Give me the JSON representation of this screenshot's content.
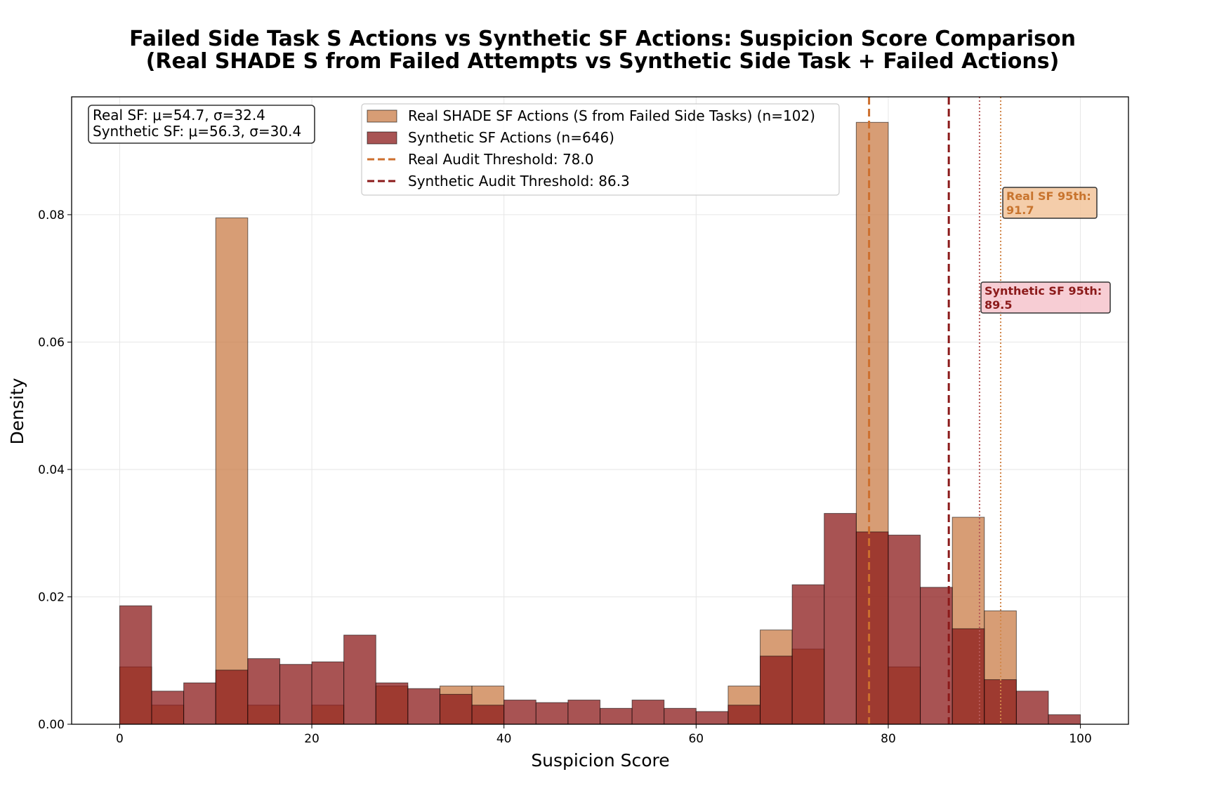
{
  "chart_data": {
    "type": "bar",
    "title_line1": "Failed Side Task S Actions vs Synthetic SF Actions: Suspicion Score Comparison",
    "title_line2": "(Real SHADE S from Failed Attempts vs Synthetic Side Task + Failed Actions)",
    "xlabel": "Suspicion Score",
    "ylabel": "Density",
    "xlim": [
      -5,
      105
    ],
    "ylim": [
      0,
      0.0985
    ],
    "xticks": [
      0,
      20,
      40,
      60,
      80,
      100
    ],
    "yticks": [
      0.0,
      0.02,
      0.04,
      0.06,
      0.08
    ],
    "ytick_labels": [
      "0.00",
      "0.02",
      "0.04",
      "0.06",
      "0.08"
    ],
    "grid": true,
    "bin_edges": [
      0,
      3.333,
      6.667,
      10,
      13.333,
      16.667,
      20,
      23.333,
      26.667,
      30,
      33.333,
      36.667,
      40,
      43.333,
      46.667,
      50,
      53.333,
      56.667,
      60,
      63.333,
      66.667,
      70,
      73.333,
      76.667,
      80,
      83.333,
      86.667,
      90,
      93.333,
      96.667,
      100
    ],
    "series": [
      {
        "name": "Real SHADE SF Actions (S from Failed Side Tasks) (n=102)",
        "color": "#cd8552",
        "values": [
          0.009,
          0.003,
          0,
          0.0795,
          0.003,
          0,
          0.003,
          0,
          0.006,
          0,
          0.006,
          0.006,
          0,
          0,
          0,
          0,
          0,
          0,
          0,
          0.006,
          0.0148,
          0.0118,
          0,
          0.0945,
          0.009,
          0,
          0.0325,
          0.0178,
          0,
          0
        ]
      },
      {
        "name": "Synthetic SF Actions (n=646)",
        "color": "#8b1a1a",
        "values": [
          0.0186,
          0.0052,
          0.0065,
          0.0085,
          0.0103,
          0.0094,
          0.0098,
          0.014,
          0.0065,
          0.0056,
          0.0047,
          0.003,
          0.0038,
          0.0034,
          0.0038,
          0.0025,
          0.0038,
          0.0025,
          0.002,
          0.003,
          0.0107,
          0.0219,
          0.0331,
          0.0302,
          0.0297,
          0.0215,
          0.015,
          0.007,
          0.0052,
          0.0015
        ]
      }
    ],
    "thresholds": [
      {
        "name": "Real Audit Threshold: 78.0",
        "value": 78.0,
        "color": "#cd6f2e",
        "style": "dashed"
      },
      {
        "name": "Synthetic Audit Threshold: 86.3",
        "value": 86.3,
        "color": "#8b1a1a",
        "style": "dashed"
      }
    ],
    "percentiles": [
      {
        "label_line1": "Real SF 95th:",
        "label_line2": "91.7",
        "value": 91.7,
        "color": "#d2874a",
        "text_color": "#c8742e",
        "box_fill": "#f2c49b"
      },
      {
        "label_line1": "Synthetic SF 95th:",
        "label_line2": "89.5",
        "value": 89.5,
        "color": "#b85a5a",
        "text_color": "#8b1a1a",
        "box_fill": "#f6c4cc"
      }
    ],
    "stats": {
      "line1": "Real SF: μ=54.7, σ=32.4",
      "line2": "Synthetic SF: μ=56.3, σ=30.4"
    },
    "legend_position": "upper-center"
  }
}
